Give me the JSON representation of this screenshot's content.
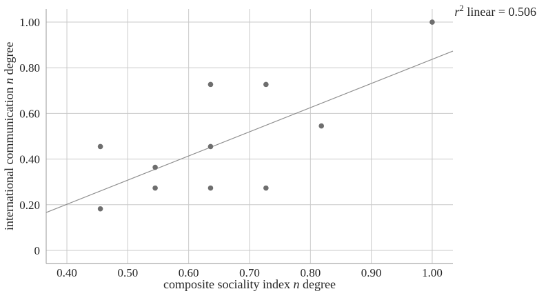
{
  "chart_data": {
    "type": "scatter",
    "title": "",
    "xlabel": {
      "pre": "composite sociality index ",
      "italic": "n",
      "post": " degree"
    },
    "ylabel": {
      "pre": "international communication ",
      "italic": "n",
      "post": " degree"
    },
    "annotation": {
      "r_italic": "r",
      "exponent": "2",
      "rest": " linear = 0.506"
    },
    "r2_linear": 0.506,
    "points": [
      [
        0.455,
        0.455
      ],
      [
        0.455,
        0.182
      ],
      [
        0.545,
        0.364
      ],
      [
        0.545,
        0.273
      ],
      [
        0.636,
        0.727
      ],
      [
        0.636,
        0.455
      ],
      [
        0.636,
        0.273
      ],
      [
        0.727,
        0.727
      ],
      [
        0.727,
        0.273
      ],
      [
        0.818,
        0.545
      ],
      [
        1.0,
        1.0
      ]
    ],
    "regression_line": {
      "x1": 0.366,
      "y1": 0.166,
      "x2": 1.034,
      "y2": 0.873
    },
    "x_ticks": {
      "values": [
        0.4,
        0.5,
        0.6,
        0.7,
        0.8,
        0.9,
        1.0
      ],
      "labels": [
        "0.40",
        "0.50",
        "0.60",
        "0.70",
        "0.80",
        "0.90",
        "1.00"
      ]
    },
    "y_ticks": {
      "values": [
        0,
        0.2,
        0.4,
        0.6,
        0.8,
        1.0
      ],
      "labels": [
        "0",
        "0.20",
        "0.40",
        "0.60",
        "0.80",
        "1.00"
      ]
    },
    "xlim": [
      0.366,
      1.034
    ],
    "ylim": [
      -0.0575,
      1.0575
    ],
    "grid": true,
    "legend": "none",
    "marker": {
      "shape": "circle",
      "radius": 3.8
    },
    "colors": {
      "background": "#ffffff",
      "grid": "#c9c9c9",
      "axis": "#a9a9a9",
      "point": "#6e6e6e",
      "line": "#8f8f8f",
      "text": "#262626"
    }
  }
}
